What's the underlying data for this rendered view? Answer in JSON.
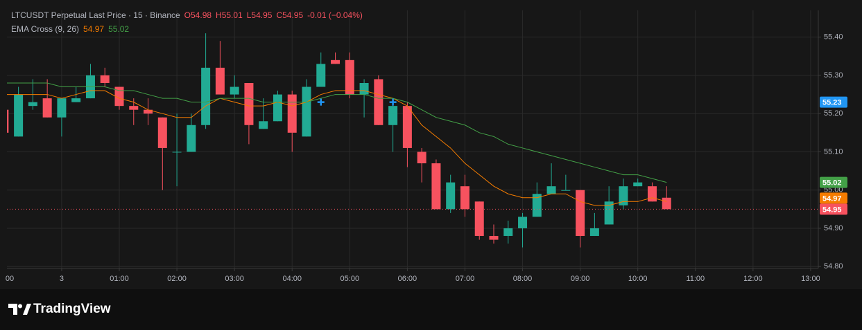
{
  "chart_data": {
    "type": "candlestick",
    "title": "LTCUSDT Perpetual Last Price · 15 · Binance",
    "ohlc_labels": [
      "O54.98",
      "H55.01",
      "L54.95",
      "C54.95",
      "-0.01 (−0.04%)"
    ],
    "subtitle": "EMA Cross (9, 26)",
    "x": [
      "23:00",
      "23:15",
      "23:30",
      "23:45",
      "00:00",
      "00:15",
      "00:30",
      "00:45",
      "01:00",
      "01:15",
      "01:30",
      "01:45",
      "02:00",
      "02:15",
      "02:30",
      "02:45",
      "03:00",
      "03:15",
      "03:30",
      "03:45",
      "04:00",
      "04:15",
      "04:30",
      "04:45",
      "05:00",
      "05:15",
      "05:30",
      "05:45",
      "06:00",
      "06:15",
      "06:30",
      "06:45",
      "07:00",
      "07:15",
      "07:30",
      "07:45",
      "08:00",
      "08:15",
      "08:30",
      "08:45",
      "09:00",
      "09:15",
      "09:30",
      "09:45",
      "10:00",
      "10:15",
      "10:30"
    ],
    "open": [
      55.21,
      55.14,
      55.22,
      55.24,
      55.19,
      55.23,
      55.24,
      55.3,
      55.27,
      55.22,
      55.21,
      55.19,
      55.1,
      55.1,
      55.17,
      55.32,
      55.25,
      55.28,
      55.16,
      55.18,
      55.25,
      55.14,
      55.27,
      55.34,
      55.34,
      55.25,
      55.29,
      55.17,
      55.22,
      55.1,
      55.07,
      54.95,
      55.01,
      54.97,
      54.88,
      54.88,
      54.9,
      54.93,
      54.99,
      55.0,
      55.0,
      54.88,
      54.91,
      54.96,
      55.01,
      55.01,
      54.98
    ],
    "high": [
      55.22,
      55.27,
      55.29,
      55.29,
      55.24,
      55.27,
      55.33,
      55.32,
      55.27,
      55.24,
      55.24,
      55.19,
      55.2,
      55.2,
      55.41,
      55.39,
      55.3,
      55.28,
      55.24,
      55.26,
      55.26,
      55.29,
      55.36,
      55.36,
      55.36,
      55.29,
      55.3,
      55.24,
      55.23,
      55.11,
      55.08,
      55.04,
      55.04,
      54.97,
      54.91,
      54.92,
      54.94,
      55.02,
      55.07,
      55.04,
      55.0,
      54.94,
      55.01,
      55.03,
      55.03,
      55.02,
      55.01
    ],
    "low": [
      55.14,
      55.14,
      55.21,
      55.19,
      55.14,
      55.23,
      55.24,
      55.27,
      55.21,
      55.17,
      55.17,
      55.0,
      55.01,
      55.1,
      55.16,
      55.25,
      55.24,
      55.12,
      55.16,
      55.18,
      55.1,
      55.14,
      55.27,
      55.33,
      55.24,
      55.19,
      55.17,
      55.1,
      55.06,
      55.02,
      54.95,
      54.94,
      54.93,
      54.87,
      54.86,
      54.86,
      54.85,
      54.93,
      54.99,
      55.0,
      54.85,
      54.88,
      54.91,
      54.95,
      55.01,
      54.97,
      54.95
    ],
    "close": [
      55.15,
      55.25,
      55.23,
      55.19,
      55.24,
      55.24,
      55.3,
      55.28,
      55.22,
      55.21,
      55.2,
      55.11,
      55.1,
      55.17,
      55.32,
      55.25,
      55.27,
      55.17,
      55.18,
      55.25,
      55.15,
      55.27,
      55.33,
      55.33,
      55.25,
      55.28,
      55.17,
      55.22,
      55.11,
      55.07,
      54.95,
      55.02,
      54.95,
      54.88,
      54.87,
      54.9,
      54.93,
      54.99,
      55.01,
      55.0,
      54.88,
      54.9,
      54.97,
      55.01,
      55.02,
      54.97,
      54.95
    ],
    "up_color": "#22ab94",
    "down_color": "#f7525f",
    "series": [
      {
        "color": "#f57c00",
        "legend_value": "54.97",
        "values": [
          55.25,
          55.25,
          55.25,
          55.25,
          55.24,
          55.25,
          55.26,
          55.26,
          55.24,
          55.23,
          55.21,
          55.2,
          55.19,
          55.19,
          55.22,
          55.24,
          55.23,
          55.22,
          55.22,
          55.23,
          55.22,
          55.23,
          55.25,
          55.26,
          55.26,
          55.26,
          55.25,
          55.24,
          55.22,
          55.17,
          55.14,
          55.11,
          55.07,
          55.04,
          55.01,
          54.99,
          54.98,
          54.98,
          54.99,
          54.99,
          54.97,
          54.96,
          54.96,
          54.97,
          54.97,
          54.98,
          54.97
        ]
      },
      {
        "color": "#43a047",
        "legend_value": "55.02",
        "values": [
          55.28,
          55.28,
          55.28,
          55.28,
          55.27,
          55.27,
          55.27,
          55.27,
          55.26,
          55.26,
          55.25,
          55.24,
          55.24,
          55.23,
          55.23,
          55.24,
          55.24,
          55.24,
          55.23,
          55.23,
          55.23,
          55.23,
          55.24,
          55.25,
          55.25,
          55.25,
          55.24,
          55.24,
          55.23,
          55.21,
          55.19,
          55.18,
          55.17,
          55.15,
          55.14,
          55.12,
          55.11,
          55.1,
          55.09,
          55.08,
          55.07,
          55.06,
          55.05,
          55.04,
          55.04,
          55.03,
          55.02
        ]
      }
    ],
    "crosses": {
      "color": "#2196f3",
      "x": [
        "04:30",
        "05:45"
      ],
      "values": [
        55.23,
        55.23
      ]
    },
    "price_labels": [
      {
        "value": 55.23,
        "label": "55.23",
        "color": "#2196f3"
      },
      {
        "value": 55.02,
        "label": "55.02",
        "color": "#43a047"
      },
      {
        "value": 54.97,
        "label": "54.97",
        "color": "#f57c00"
      },
      {
        "value": 54.95,
        "label": "54.95",
        "color": "#f7525f",
        "line": true
      }
    ],
    "xlim": [
      "23:03",
      "13:08"
    ],
    "xticks": [
      {
        "value": "23:00",
        "label": "00"
      },
      {
        "value": "00:00",
        "label": "3"
      },
      "01:00",
      "02:00",
      "03:00",
      "04:00",
      "05:00",
      "06:00",
      "07:00",
      "08:00",
      "09:00",
      "10:00",
      "11:00",
      "12:00",
      "13:00"
    ],
    "ylim": [
      54.795,
      55.47
    ],
    "yticks": [
      {
        "value": 54.8,
        "label": "54.80"
      },
      {
        "value": 54.9,
        "label": "54.90"
      },
      {
        "value": 55.0,
        "label": "55.00"
      },
      {
        "value": 55.1,
        "label": "55.10"
      },
      {
        "value": 55.2,
        "label": "55.20"
      },
      {
        "value": 55.3,
        "label": "55.30"
      },
      {
        "value": 55.4,
        "label": "55.40"
      }
    ],
    "grid": true
  },
  "logo": "TradingView"
}
